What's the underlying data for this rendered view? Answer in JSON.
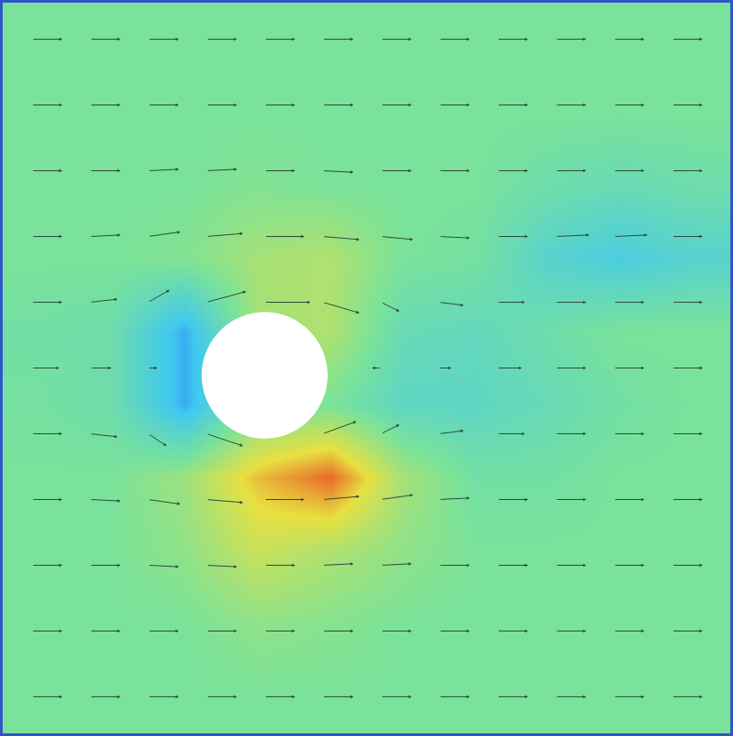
{
  "chart_data": {
    "type": "heatmap",
    "tick_labels": false,
    "grid": false,
    "xlim": [
      0,
      10
    ],
    "ylim": [
      0,
      10
    ],
    "zlim": [
      0,
      1
    ],
    "cells": {
      "x": [
        0.5,
        1.5,
        2.5,
        3.5,
        4.5,
        5.5,
        6.5,
        7.5,
        8.5,
        9.5
      ],
      "y": [
        0.5,
        1.5,
        2.5,
        3.5,
        4.5,
        5.5,
        6.5,
        7.5,
        8.5,
        9.5
      ],
      "z": [
        [
          0.5,
          0.5,
          0.5,
          0.5,
          0.5,
          0.5,
          0.5,
          0.5,
          0.5,
          0.5
        ],
        [
          0.5,
          0.5,
          0.5,
          0.55,
          0.53,
          0.5,
          0.5,
          0.5,
          0.5,
          0.5
        ],
        [
          0.5,
          0.5,
          0.55,
          0.68,
          0.62,
          0.55,
          0.5,
          0.5,
          0.5,
          0.5
        ],
        [
          0.5,
          0.5,
          0.58,
          0.8,
          0.92,
          0.6,
          0.47,
          0.47,
          0.5,
          0.5
        ],
        [
          0.48,
          0.45,
          0.2,
          0.5,
          0.5,
          0.38,
          0.38,
          0.42,
          0.47,
          0.5
        ],
        [
          0.47,
          0.45,
          0.2,
          0.6,
          0.62,
          0.42,
          0.4,
          0.45,
          0.5,
          0.5
        ],
        [
          0.5,
          0.5,
          0.52,
          0.6,
          0.62,
          0.5,
          0.48,
          0.35,
          0.3,
          0.35
        ],
        [
          0.5,
          0.5,
          0.5,
          0.52,
          0.5,
          0.5,
          0.5,
          0.45,
          0.42,
          0.45
        ],
        [
          0.5,
          0.5,
          0.5,
          0.5,
          0.5,
          0.5,
          0.5,
          0.5,
          0.5,
          0.5
        ],
        [
          0.5,
          0.5,
          0.5,
          0.5,
          0.5,
          0.5,
          0.5,
          0.5,
          0.5,
          0.5
        ]
      ]
    },
    "vectors": {
      "x": [
        0.4,
        1.2,
        2.0,
        2.8,
        3.6,
        4.4,
        5.2,
        6.0,
        6.8,
        7.6,
        8.4,
        9.2
      ],
      "y": [
        0.5,
        1.4,
        2.3,
        3.2,
        4.1,
        5.0,
        5.9,
        6.8,
        7.7,
        8.6,
        9.5
      ],
      "u": [
        [
          1,
          1,
          1,
          1,
          1,
          1,
          1,
          1,
          1,
          1,
          1,
          1
        ],
        [
          1,
          1,
          1,
          1,
          1,
          1,
          1,
          1,
          1,
          1,
          1,
          1
        ],
        [
          1,
          1,
          1,
          1,
          1,
          1,
          1,
          1,
          1,
          1,
          1,
          1
        ],
        [
          1,
          1,
          1.05,
          1.2,
          1.3,
          1.2,
          1.05,
          1,
          1,
          1,
          1,
          1
        ],
        [
          1,
          0.9,
          0.6,
          1.2,
          null,
          1.1,
          0.6,
          0.8,
          0.9,
          1,
          1,
          1
        ],
        [
          0.9,
          0.7,
          0.3,
          null,
          null,
          null,
          -0.3,
          0.4,
          0.8,
          1,
          1,
          1
        ],
        [
          1,
          0.9,
          0.7,
          1.3,
          1.5,
          1.2,
          0.6,
          0.8,
          0.9,
          1,
          1,
          1
        ],
        [
          1,
          1,
          1.05,
          1.2,
          1.3,
          1.2,
          1.05,
          1,
          1,
          1.1,
          1.1,
          1
        ],
        [
          1,
          1,
          1,
          1,
          1,
          1,
          1,
          1,
          1,
          1,
          1,
          1
        ],
        [
          1,
          1,
          1,
          1,
          1,
          1,
          1,
          1,
          1,
          1,
          1,
          1
        ],
        [
          1,
          1,
          1,
          1,
          1,
          1,
          1,
          1,
          1,
          1,
          1,
          1
        ]
      ],
      "v": [
        [
          0,
          0,
          0,
          0,
          0,
          0,
          0,
          0,
          0,
          0,
          0,
          0
        ],
        [
          0,
          0,
          0,
          0,
          0,
          0,
          0,
          0,
          0,
          0,
          0,
          0
        ],
        [
          0,
          0,
          -0.05,
          -0.05,
          0,
          0.05,
          0.05,
          0,
          0,
          0,
          0,
          0
        ],
        [
          0,
          -0.05,
          -0.15,
          -0.1,
          0,
          0.1,
          0.15,
          0.05,
          0,
          0,
          0,
          0
        ],
        [
          0,
          -0.1,
          -0.4,
          -0.4,
          null,
          0.4,
          0.3,
          0.1,
          0,
          0,
          0,
          0
        ],
        [
          0,
          0,
          0,
          null,
          null,
          null,
          0,
          0,
          0,
          0,
          0,
          0
        ],
        [
          0,
          0.1,
          0.4,
          0.35,
          0,
          -0.35,
          -0.3,
          -0.1,
          0,
          0,
          0,
          0
        ],
        [
          0,
          0.05,
          0.15,
          0.1,
          0,
          -0.1,
          -0.1,
          -0.05,
          0,
          0.05,
          0.05,
          0
        ],
        [
          0,
          0,
          0.05,
          0.05,
          0,
          -0.05,
          0,
          0,
          0,
          0,
          0,
          0
        ],
        [
          0,
          0,
          0,
          0,
          0,
          0,
          0,
          0,
          0,
          0,
          0,
          0
        ],
        [
          0,
          0,
          0,
          0,
          0,
          0,
          0,
          0,
          0,
          0,
          0,
          0
        ]
      ]
    },
    "cylinder": {
      "x": 3.6,
      "y": 4.9,
      "r": 0.86
    }
  }
}
